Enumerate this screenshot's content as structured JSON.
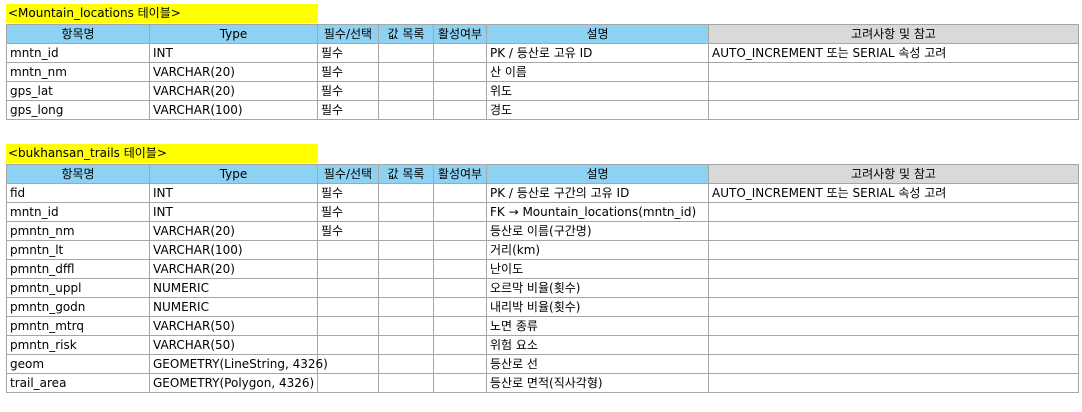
{
  "headers": [
    "항목명",
    "Type",
    "필수/선택",
    "값 목록",
    "활성여부",
    "설명",
    "고려사항 및 참고"
  ],
  "table1": {
    "title": "<Mountain_locations 테이블>",
    "rows": [
      [
        "mntn_id",
        "INT",
        "필수",
        "",
        "",
        "PK / 등산로 고유 ID",
        "AUTO_INCREMENT 또는 SERIAL 속성 고려"
      ],
      [
        "mntn_nm",
        "VARCHAR(20)",
        "필수",
        "",
        "",
        "산 이름",
        ""
      ],
      [
        "gps_lat",
        "VARCHAR(20)",
        "필수",
        "",
        "",
        "위도",
        ""
      ],
      [
        "gps_long",
        "VARCHAR(100)",
        "필수",
        "",
        "",
        "경도",
        ""
      ]
    ]
  },
  "table2": {
    "title": "<bukhansan_trails 테이블>",
    "rows": [
      [
        "fid",
        "INT",
        "필수",
        "",
        "",
        "PK / 등산로 구간의 고유 ID",
        "AUTO_INCREMENT 또는 SERIAL 속성 고려"
      ],
      [
        "mntn_id",
        "INT",
        "필수",
        "",
        "",
        "FK → Mountain_locations(mntn_id)",
        ""
      ],
      [
        "pmntn_nm",
        "VARCHAR(20)",
        "필수",
        "",
        "",
        "등산로 이름(구간명)",
        ""
      ],
      [
        "pmntn_lt",
        "VARCHAR(100)",
        "",
        "",
        "",
        "거리(km)",
        ""
      ],
      [
        "pmntn_dffl",
        "VARCHAR(20)",
        "",
        "",
        "",
        "난이도",
        ""
      ],
      [
        "pmntn_uppl",
        "NUMERIC",
        "",
        "",
        "",
        "오르막 비율(횟수)",
        ""
      ],
      [
        "pmntn_godn",
        "NUMERIC",
        "",
        "",
        "",
        "내리박 비율(횟수)",
        ""
      ],
      [
        "pmntn_mtrq",
        "VARCHAR(50)",
        "",
        "",
        "",
        "노면 종류",
        ""
      ],
      [
        "pmntn_risk",
        "VARCHAR(50)",
        "",
        "",
        "",
        "위험 요소",
        ""
      ],
      [
        "geom",
        "GEOMETRY(LineString, 4326)",
        "",
        "",
        "",
        "등산로 선",
        ""
      ],
      [
        "trail_area",
        "GEOMETRY(Polygon, 4326)",
        "",
        "",
        "",
        "등산로 면적(직사각형)",
        ""
      ]
    ]
  }
}
